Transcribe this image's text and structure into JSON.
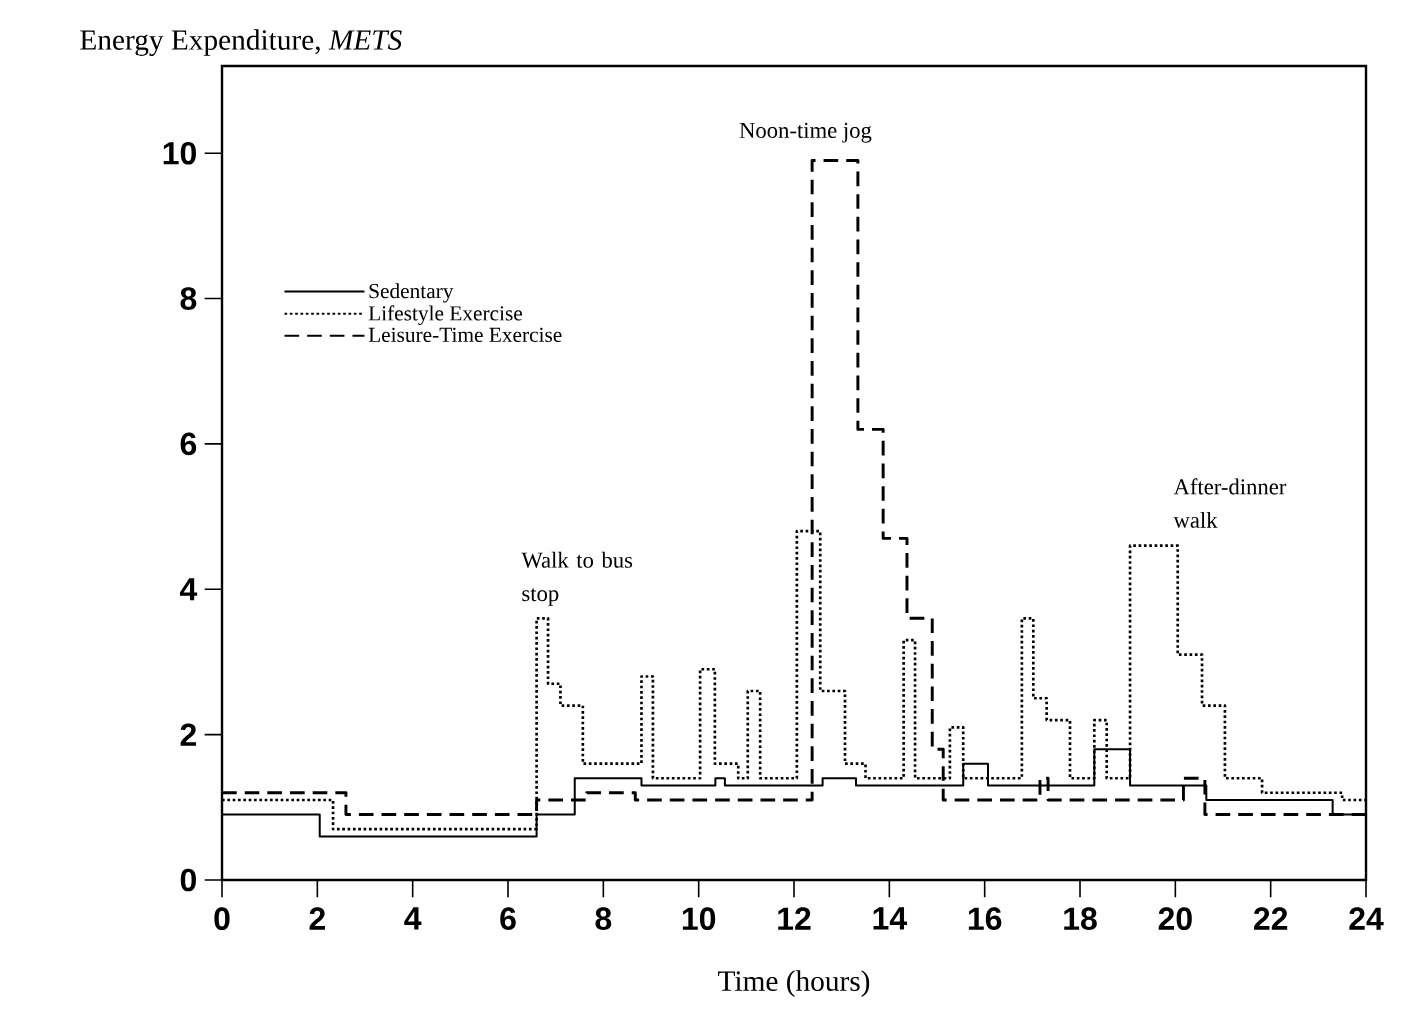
{
  "chart_data": {
    "type": "step",
    "xlabel": "Time (hours)",
    "ylabel": "Energy Expenditure, *METS*",
    "xlim": [
      0,
      24
    ],
    "ylim": [
      0,
      11.2
    ],
    "xticks": [
      0,
      2,
      4,
      6,
      8,
      10,
      12,
      14,
      16,
      18,
      20,
      22,
      24
    ],
    "yticks": [
      0,
      2,
      4,
      6,
      8,
      10
    ],
    "grid": false,
    "legend": "top left",
    "series": [
      {
        "name": "Sedentary",
        "color": "#000000",
        "line_style": "solid",
        "x": [
          0,
          2.05,
          6.6,
          7.4,
          8.8,
          10.35,
          10.55,
          12.6,
          13.3,
          15.55,
          16.07,
          18.3,
          19.05,
          20.65,
          23.3,
          24
        ],
        "values": [
          0.9,
          0.6,
          0.9,
          1.4,
          1.3,
          1.4,
          1.3,
          1.4,
          1.3,
          1.6,
          1.3,
          1.8,
          1.3,
          1.1,
          0.9,
          0.9
        ]
      },
      {
        "name": "Lifestyle Exercise",
        "color": "#000000",
        "line_style": "dotted",
        "x": [
          0,
          2.33,
          6.6,
          6.84,
          7.1,
          7.57,
          8.8,
          9.04,
          10.03,
          10.34,
          10.83,
          11.03,
          11.29,
          12.06,
          12.55,
          13.07,
          13.5,
          14.3,
          14.54,
          15.27,
          15.55,
          16.78,
          17.02,
          17.3,
          17.79,
          18.3,
          18.56,
          19.05,
          20.05,
          20.56,
          21.04,
          21.82,
          23.5,
          24
        ],
        "values": [
          1.1,
          0.7,
          3.6,
          2.7,
          2.4,
          1.6,
          2.8,
          1.4,
          2.9,
          1.6,
          1.4,
          2.6,
          1.4,
          4.8,
          2.6,
          1.6,
          1.4,
          3.3,
          1.4,
          2.1,
          1.4,
          3.6,
          2.5,
          2.2,
          1.4,
          2.2,
          1.4,
          4.6,
          3.1,
          2.4,
          1.4,
          1.2,
          1.1,
          1.1
        ]
      },
      {
        "name": "Leisure-Time Exercise",
        "color": "#000000",
        "line_style": "dashed",
        "x": [
          0,
          2.6,
          6.6,
          7.65,
          8.67,
          12.38,
          13.34,
          13.87,
          14.37,
          14.9,
          15.13,
          17.16,
          17.33,
          20.17,
          20.62,
          24
        ],
        "values": [
          1.2,
          0.9,
          1.1,
          1.2,
          1.1,
          9.9,
          6.2,
          4.7,
          3.6,
          1.8,
          1.1,
          1.4,
          1.1,
          1.4,
          0.9,
          0.9
        ]
      }
    ],
    "annotations": [
      "Noon-time jog",
      "Walk to bus stop",
      "After-dinner walk"
    ]
  }
}
